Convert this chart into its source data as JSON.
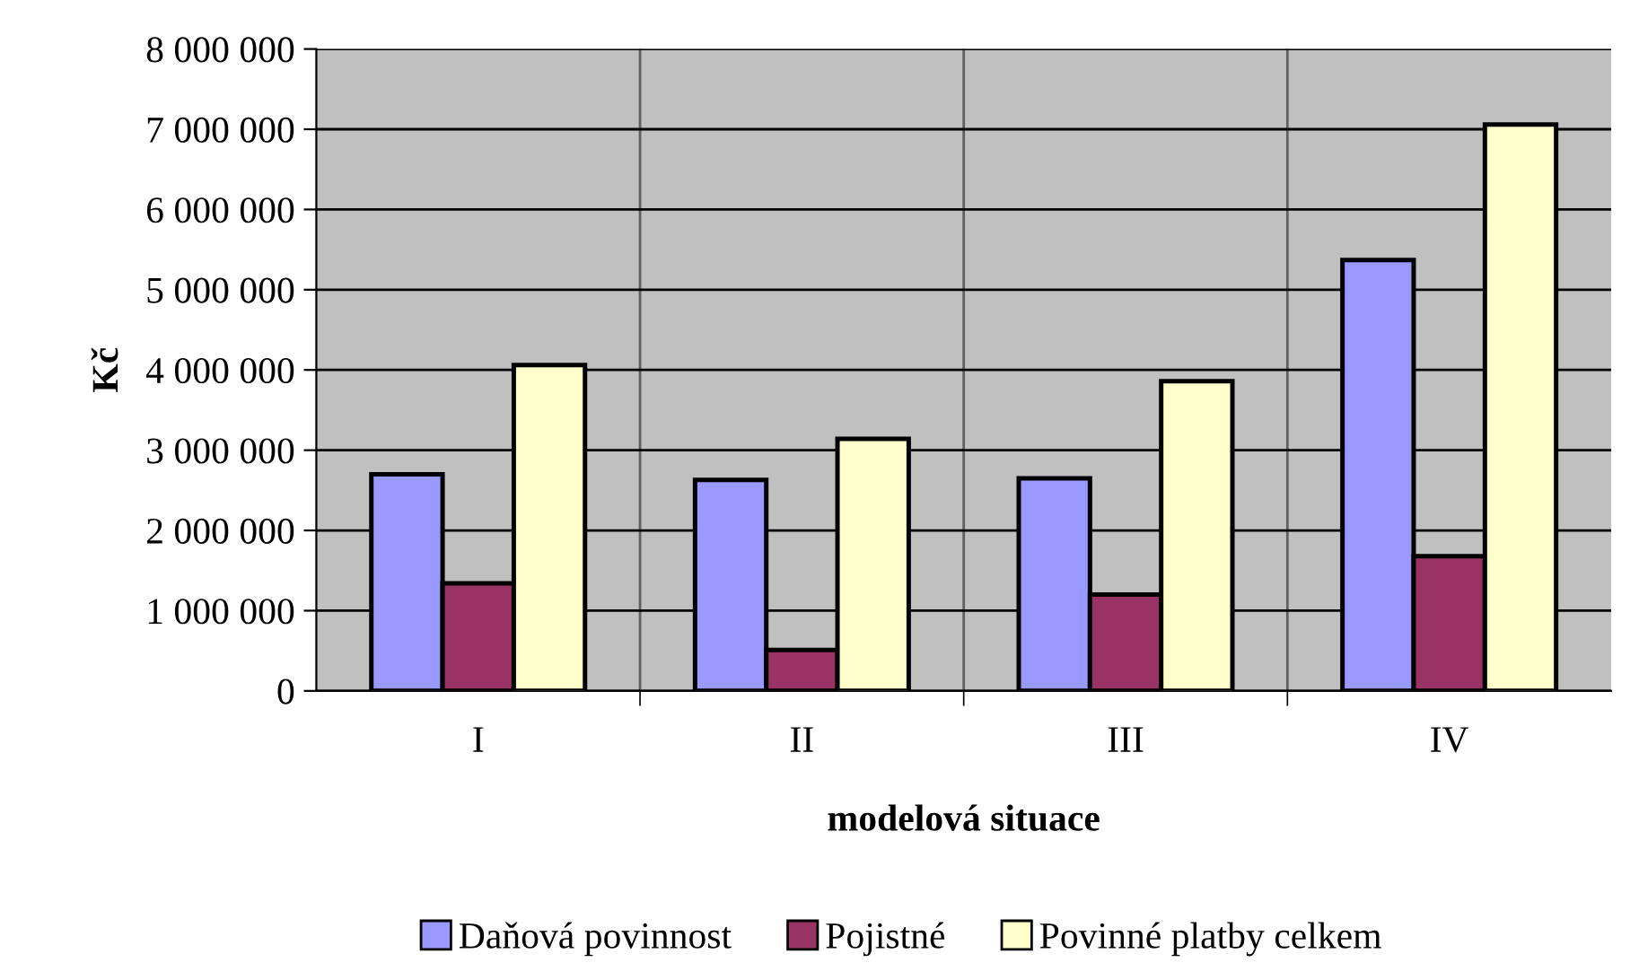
{
  "chart_data": {
    "type": "bar",
    "xlabel": "modelová situace",
    "ylabel": "Kč",
    "categories": [
      "I",
      "II",
      "III",
      "IV"
    ],
    "series": [
      {
        "name": "Daňová povinnost",
        "color": "#9999ff",
        "values": [
          2700000,
          2630000,
          2650000,
          5370000
        ]
      },
      {
        "name": "Pojistné",
        "color": "#993366",
        "values": [
          1340000,
          510000,
          1200000,
          1680000
        ]
      },
      {
        "name": "Povinné platby celkem",
        "color": "#ffffcc",
        "values": [
          4060000,
          3140000,
          3860000,
          7060000
        ]
      }
    ],
    "ylim": [
      0,
      8000000
    ],
    "yticks": [
      {
        "value": 0,
        "label": "0"
      },
      {
        "value": 1000000,
        "label": "1 000 000"
      },
      {
        "value": 2000000,
        "label": "2 000 000"
      },
      {
        "value": 3000000,
        "label": "3 000 000"
      },
      {
        "value": 4000000,
        "label": "4 000 000"
      },
      {
        "value": 5000000,
        "label": "5 000 000"
      },
      {
        "value": 6000000,
        "label": "6 000 000"
      },
      {
        "value": 7000000,
        "label": "7 000 000"
      },
      {
        "value": 8000000,
        "label": "8 000 000"
      }
    ],
    "grid": true,
    "legend": "bottom"
  }
}
